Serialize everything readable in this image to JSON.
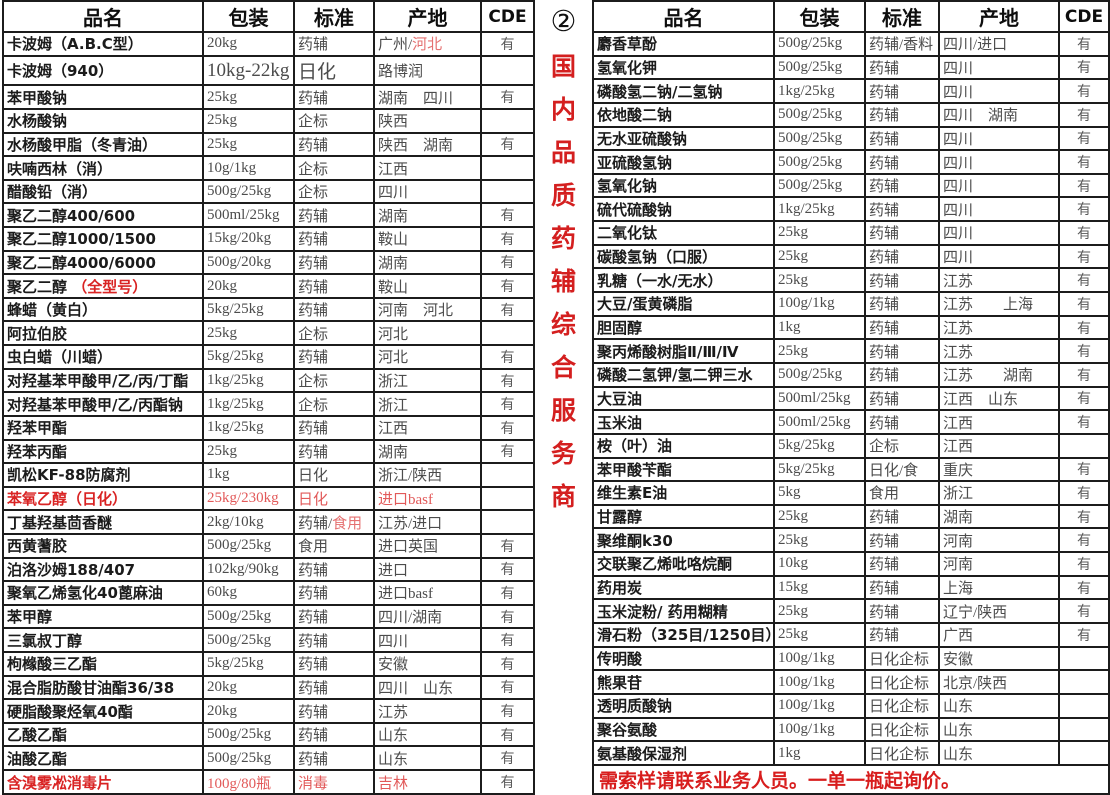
{
  "banner": {
    "circled_number": "②",
    "vertical_text": "国内品质药辅综合服务商"
  },
  "columns": [
    "品名",
    "包装",
    "标准",
    "产地",
    "CDE"
  ],
  "left_table": {
    "rows": [
      {
        "name": "卡波姆（A.B.C型）",
        "pack": "20kg",
        "std": "药辅",
        "origin": [
          {
            "t": "广州/"
          },
          {
            "t": "河北",
            "red": true
          }
        ],
        "cde": "有"
      },
      {
        "name": "卡波姆（940）",
        "pack": "10kg-22kg",
        "std": "日化",
        "origin": "路博润",
        "cde": "",
        "big": true
      },
      {
        "name": "苯甲酸钠",
        "pack": "25kg",
        "std": "药辅",
        "origin": "湖南　四川",
        "cde": "有"
      },
      {
        "name": "水杨酸钠",
        "pack": "25kg",
        "std": "企标",
        "origin": "陕西",
        "cde": ""
      },
      {
        "name": "水杨酸甲脂（冬青油）",
        "pack": "25kg",
        "std": "药辅",
        "origin": "陕西　湖南",
        "cde": "有"
      },
      {
        "name": "呋喃西林（消）",
        "pack": "10g/1kg",
        "std": "企标",
        "origin": "江西",
        "cde": ""
      },
      {
        "name": "醋酸铅（消）",
        "pack": "500g/25kg",
        "std": "企标",
        "origin": "四川",
        "cde": ""
      },
      {
        "name": "聚乙二醇400/600",
        "pack": "500ml/25kg",
        "std": "药辅",
        "origin": "湖南",
        "cde": "有"
      },
      {
        "name": "聚乙二醇1000/1500",
        "pack": "15kg/20kg",
        "std": "药辅",
        "origin": "鞍山",
        "cde": "有"
      },
      {
        "name": "聚乙二醇4000/6000",
        "pack": "500g/20kg",
        "std": "药辅",
        "origin": "湖南",
        "cde": "有"
      },
      {
        "name": [
          {
            "t": "聚乙二醇 "
          },
          {
            "t": "（全型号）",
            "red": true
          }
        ],
        "pack": "20kg",
        "std": "药辅",
        "origin": "鞍山",
        "cde": "有"
      },
      {
        "name": "蜂蜡（黄白）",
        "pack": "5kg/25kg",
        "std": "药辅",
        "origin": "河南　河北",
        "cde": "有"
      },
      {
        "name": "阿拉伯胶",
        "pack": "25kg",
        "std": "企标",
        "origin": "河北",
        "cde": ""
      },
      {
        "name": "虫白蜡（川蜡）",
        "pack": "5kg/25kg",
        "std": "药辅",
        "origin": "河北",
        "cde": "有"
      },
      {
        "name": "对羟基苯甲酸甲/乙/丙/丁酯",
        "pack": "1kg/25kg",
        "std": "企标",
        "origin": "浙江",
        "cde": "有"
      },
      {
        "name": "对羟基苯甲酸甲/乙/丙酯钠",
        "pack": "1kg/25kg",
        "std": "企标",
        "origin": "浙江",
        "cde": "有"
      },
      {
        "name": "羟苯甲酯",
        "pack": "1kg/25kg",
        "std": "药辅",
        "origin": "江西",
        "cde": "有"
      },
      {
        "name": "羟苯丙酯",
        "pack": "25kg",
        "std": "药辅",
        "origin": "湖南",
        "cde": "有"
      },
      {
        "name": "凯松KF-88防腐剂",
        "pack": "1kg",
        "std": "日化",
        "origin": "浙江/陕西",
        "cde": ""
      },
      {
        "name": "苯氧乙醇（日化）",
        "pack": "25kg/230kg",
        "std": "日化",
        "origin": "进口basf",
        "cde": "",
        "red": true
      },
      {
        "name": "丁基羟基茴香醚",
        "pack": "2kg/10kg",
        "std": [
          {
            "t": "药辅/"
          },
          {
            "t": "食用",
            "red": true
          }
        ],
        "origin": "江苏/进口",
        "cde": ""
      },
      {
        "name": "西黄蓍胶",
        "pack": "500g/25kg",
        "std": "食用",
        "origin": "进口英国",
        "cde": "有"
      },
      {
        "name": "泊洛沙姆188/407",
        "pack": "102kg/90kg",
        "std": "药辅",
        "origin": "进口",
        "cde": "有"
      },
      {
        "name": "聚氧乙烯氢化40蓖麻油",
        "pack": "60kg",
        "std": "药辅",
        "origin": "进口basf",
        "cde": "有"
      },
      {
        "name": "苯甲醇",
        "pack": "500g/25kg",
        "std": "药辅",
        "origin": "四川/湖南",
        "cde": "有"
      },
      {
        "name": "三氯叔丁醇",
        "pack": "500g/25kg",
        "std": "药辅",
        "origin": "四川",
        "cde": "有"
      },
      {
        "name": "枸橼酸三乙酯",
        "pack": "5kg/25kg",
        "std": "药辅",
        "origin": "安徽",
        "cde": "有"
      },
      {
        "name": "混合脂肪酸甘油酯36/38",
        "pack": "20kg",
        "std": "药辅",
        "origin": "四川　山东",
        "cde": "有"
      },
      {
        "name": "硬脂酸聚烃氧40酯",
        "pack": "20kg",
        "std": "药辅",
        "origin": "江苏",
        "cde": "有"
      },
      {
        "name": "乙酸乙酯",
        "pack": "500g/25kg",
        "std": "药辅",
        "origin": "山东",
        "cde": "有"
      },
      {
        "name": "油酸乙酯",
        "pack": "500g/25kg",
        "std": "药辅",
        "origin": "山东",
        "cde": "有"
      },
      {
        "name": "含溴雾凇消毒片",
        "pack": "100g/80瓶",
        "std": "消毒",
        "origin": "吉林",
        "cde": "有",
        "red": true
      }
    ]
  },
  "right_table": {
    "rows": [
      {
        "name": "麝香草酚",
        "pack": "500g/25kg",
        "std": "药辅/香料",
        "origin": "四川/进口",
        "cde": "有"
      },
      {
        "name": "氢氧化钾",
        "pack": "500g/25kg",
        "std": "药辅",
        "origin": "四川",
        "cde": "有"
      },
      {
        "name": "磷酸氢二钠/二氢钠",
        "pack": "1kg/25kg",
        "std": "药辅",
        "origin": "四川",
        "cde": "有"
      },
      {
        "name": "依地酸二钠",
        "pack": "500g/25kg",
        "std": "药辅",
        "origin": "四川　湖南",
        "cde": "有"
      },
      {
        "name": "无水亚硫酸钠",
        "pack": "500g/25kg",
        "std": "药辅",
        "origin": "四川",
        "cde": "有"
      },
      {
        "name": "亚硫酸氢钠",
        "pack": "500g/25kg",
        "std": "药辅",
        "origin": "四川",
        "cde": "有"
      },
      {
        "name": "氢氧化钠",
        "pack": "500g/25kg",
        "std": "药辅",
        "origin": "四川",
        "cde": "有"
      },
      {
        "name": "硫代硫酸钠",
        "pack": "1kg/25kg",
        "std": "药辅",
        "origin": "四川",
        "cde": "有"
      },
      {
        "name": "二氧化钛",
        "pack": "25kg",
        "std": "药辅",
        "origin": "四川",
        "cde": "有"
      },
      {
        "name": "碳酸氢钠（口服）",
        "pack": "25kg",
        "std": "药辅",
        "origin": "四川",
        "cde": "有"
      },
      {
        "name": "乳糖（一水/无水）",
        "pack": "25kg",
        "std": "药辅",
        "origin": "江苏",
        "cde": "有"
      },
      {
        "name": "大豆/蛋黄磷脂",
        "pack": "100g/1kg",
        "std": "药辅",
        "origin": "江苏　　上海",
        "cde": "有"
      },
      {
        "name": "胆固醇",
        "pack": "1kg",
        "std": "药辅",
        "origin": "江苏",
        "cde": "有"
      },
      {
        "name": "聚丙烯酸树脂Ⅱ/Ⅲ/Ⅳ",
        "pack": "25kg",
        "std": "药辅",
        "origin": "江苏",
        "cde": "有"
      },
      {
        "name": "磷酸二氢钾/氢二钾三水",
        "pack": "500g/25kg",
        "std": "药辅",
        "origin": "江苏　　湖南",
        "cde": "有"
      },
      {
        "name": "大豆油",
        "pack": "500ml/25kg",
        "std": "药辅",
        "origin": "江西　山东",
        "cde": "有"
      },
      {
        "name": "玉米油",
        "pack": "500ml/25kg",
        "std": "药辅",
        "origin": "江西",
        "cde": "有"
      },
      {
        "name": "桉（叶）油",
        "pack": "5kg/25kg",
        "std": "企标",
        "origin": "江西",
        "cde": ""
      },
      {
        "name": "苯甲酸苄酯",
        "pack": "5kg/25kg",
        "std": "日化/食",
        "origin": "重庆",
        "cde": "有"
      },
      {
        "name": "维生素E油",
        "pack": "5kg",
        "std": "食用",
        "origin": "浙江",
        "cde": "有"
      },
      {
        "name": "甘露醇",
        "pack": "25kg",
        "std": "药辅",
        "origin": "湖南",
        "cde": "有"
      },
      {
        "name": "聚维酮k30",
        "pack": "25kg",
        "std": "药辅",
        "origin": "河南",
        "cde": "有"
      },
      {
        "name": "交联聚乙烯吡咯烷酮",
        "pack": "10kg",
        "std": "药辅",
        "origin": "河南",
        "cde": "有"
      },
      {
        "name": "药用炭",
        "pack": "15kg",
        "std": "药辅",
        "origin": "上海",
        "cde": "有"
      },
      {
        "name": "玉米淀粉/ 药用糊精",
        "pack": "25kg",
        "std": "药辅",
        "origin": "辽宁/陕西",
        "cde": "有"
      },
      {
        "name": "滑石粉（325目/1250目）",
        "pack": "25kg",
        "std": "药辅",
        "origin": "广西",
        "cde": "有"
      },
      {
        "name": "传明酸",
        "pack": "100g/1kg",
        "std": "日化企标",
        "origin": "安徽",
        "cde": ""
      },
      {
        "name": "熊果苷",
        "pack": "100g/1kg",
        "std": "日化企标",
        "origin": "北京/陕西",
        "cde": ""
      },
      {
        "name": "透明质酸钠",
        "pack": "100g/1kg",
        "std": "日化企标",
        "origin": "山东",
        "cde": ""
      },
      {
        "name": "聚谷氨酸",
        "pack": "100g/1kg",
        "std": "日化企标",
        "origin": "山东",
        "cde": ""
      },
      {
        "name": "氨基酸保湿剂",
        "pack": "1kg",
        "std": "日化企标",
        "origin": "山东",
        "cde": ""
      }
    ],
    "footer": "需索样请联系业务人员。一单一瓶起询价。"
  }
}
